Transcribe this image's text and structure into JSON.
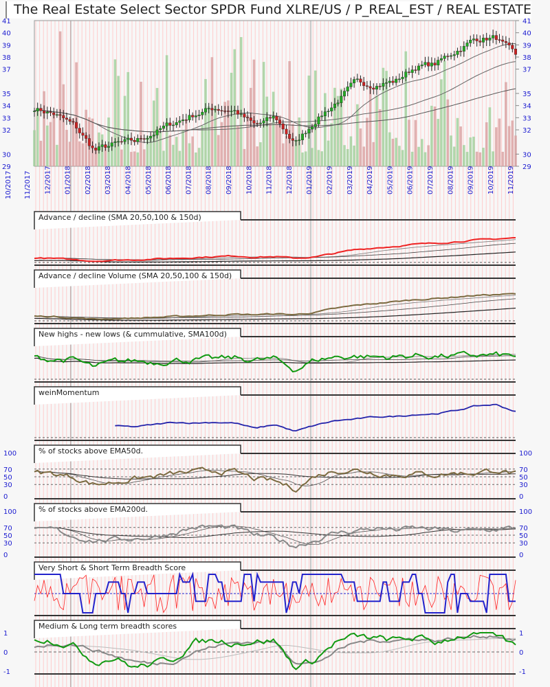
{
  "title": "The Real Estate Select Sector SPDR Fund XLRE/US / P_REAL_EST / REAL ESTATE",
  "chart_data": [
    {
      "type": "line",
      "name": "price",
      "title": "The Real Estate Select Sector SPDR Fund XLRE/US / P_REAL_EST / REAL ESTATE",
      "x": [
        "11/2017",
        "12/2017",
        "01/2018",
        "02/2018",
        "03/2018",
        "04/2018",
        "05/2018",
        "06/2018",
        "07/2018",
        "08/2018",
        "09/2018",
        "10/2018",
        "11/2018",
        "12/2018",
        "01/2019",
        "02/2019",
        "03/2019",
        "04/2019",
        "05/2019",
        "06/2019",
        "07/2019",
        "08/2019",
        "09/2019",
        "10/2019",
        "11/2019"
      ],
      "x_labels": [
        "10/2017",
        "11/2017",
        "12/2017",
        "01/2018",
        "02/2018",
        "03/2018",
        "04/2018",
        "05/2018",
        "06/2018",
        "07/2018",
        "08/2018",
        "09/2018",
        "10/2018",
        "11/2018",
        "12/2018",
        "01/2019",
        "02/2019",
        "03/2019",
        "04/2019",
        "05/2019",
        "06/2019",
        "07/2019",
        "08/2019",
        "09/2019",
        "10/2019",
        "11/2019"
      ],
      "values": [
        33.8,
        33.3,
        32.3,
        30.3,
        30.8,
        31.0,
        31.8,
        32.6,
        33.3,
        33.8,
        33.6,
        32.3,
        33.0,
        30.8,
        32.8,
        34.2,
        35.8,
        35.8,
        36.0,
        37.2,
        37.4,
        38.5,
        39.5,
        39.6,
        38.0
      ],
      "ylim": [
        29,
        41
      ],
      "yticks": [
        29,
        30,
        32,
        33,
        34,
        35,
        37,
        38,
        39,
        40,
        41
      ],
      "ytick_labels": [
        "29",
        "30",
        "32",
        "33",
        "34",
        "35",
        "37",
        "38",
        "39",
        "40",
        "41"
      ],
      "has_volume": true
    },
    {
      "type": "line",
      "name": "advance-decline",
      "title": "Advance / decline (SMA 20,50,100 & 150d)",
      "ylim": [
        0,
        100
      ],
      "values": [
        12,
        10,
        7,
        4,
        6,
        7,
        9,
        11,
        13,
        15,
        17,
        14,
        15,
        11,
        14,
        24,
        33,
        38,
        42,
        47,
        50,
        54,
        58,
        61,
        64
      ],
      "color": "#ee2222"
    },
    {
      "type": "line",
      "name": "advance-decline-volume",
      "title": "Advance / decline Volume (SMA 20,50,100 & 150d)",
      "ylim": [
        0,
        100
      ],
      "values": [
        12,
        11,
        8,
        4,
        6,
        7,
        9,
        11,
        13,
        15,
        17,
        16,
        18,
        16,
        22,
        32,
        40,
        45,
        50,
        55,
        58,
        62,
        66,
        68,
        70
      ],
      "color": "#7a6a40"
    },
    {
      "type": "line",
      "name": "new-highs-new-lows",
      "title": "New highs - new lows (& cummulative, SMA100d)",
      "ylim": [
        0,
        100
      ],
      "values": [
        55,
        52,
        50,
        30,
        45,
        48,
        45,
        50,
        50,
        52,
        55,
        50,
        52,
        25,
        50,
        58,
        60,
        58,
        58,
        62,
        60,
        60,
        62,
        62,
        60
      ],
      "color": "#119911"
    },
    {
      "type": "line",
      "name": "wein-momentum",
      "title": "weinMomentum",
      "ylim": [
        0,
        100
      ],
      "values": [
        null,
        null,
        null,
        null,
        30,
        28,
        34,
        40,
        38,
        40,
        38,
        24,
        34,
        16,
        32,
        44,
        48,
        54,
        55,
        60,
        62,
        70,
        82,
        86,
        68
      ],
      "color": "#2222aa"
    },
    {
      "type": "line",
      "name": "pct-above-ema50",
      "title": "% of stocks above EMA50d.",
      "ylim": [
        0,
        100
      ],
      "yticks": [
        0,
        30,
        50,
        70,
        100
      ],
      "ytick_labels": [
        "0",
        "30",
        "50",
        "70",
        "100"
      ],
      "values": [
        62,
        58,
        48,
        30,
        36,
        45,
        50,
        58,
        62,
        66,
        62,
        44,
        38,
        18,
        52,
        66,
        68,
        60,
        55,
        58,
        55,
        60,
        60,
        68,
        58
      ],
      "color": "#7a6a40"
    },
    {
      "type": "line",
      "name": "pct-above-ema200",
      "title": "% of stocks above EMA200d.",
      "ylim": [
        0,
        100
      ],
      "yticks": [
        0,
        30,
        50,
        70,
        100
      ],
      "ytick_labels": [
        "0",
        "30",
        "50",
        "70",
        "100"
      ],
      "values": [
        62,
        65,
        46,
        36,
        38,
        42,
        45,
        58,
        70,
        72,
        68,
        50,
        42,
        22,
        38,
        55,
        62,
        68,
        64,
        68,
        65,
        60,
        62,
        65,
        68
      ],
      "color": "#888888"
    },
    {
      "type": "line",
      "name": "short-breadth",
      "title": "Very Short & Short Term Breadth Score",
      "ylim": [
        0,
        1
      ],
      "series": [
        {
          "name": "very short",
          "color": "#ff2222"
        },
        {
          "name": "short",
          "color": "#2222cc"
        }
      ]
    },
    {
      "type": "line",
      "name": "medium-long-breadth",
      "title": "Medium & Long term breadth scores",
      "ylim": [
        -1,
        1
      ],
      "yticks": [
        -1,
        0,
        1
      ],
      "ytick_labels": [
        "-1",
        "0",
        "1"
      ],
      "series": [
        {
          "name": "medium",
          "color": "#119911",
          "values": [
            0.75,
            0.6,
            0.3,
            -0.5,
            -0.3,
            -0.8,
            -0.6,
            -0.3,
            0.5,
            0.6,
            0.5,
            0.55,
            0.6,
            -0.8,
            -0.4,
            0.5,
            0.8,
            0.7,
            0.6,
            0.75,
            0.5,
            0.8,
            0.9,
            0.85,
            0.3
          ]
        },
        {
          "name": "long",
          "color": "#888888",
          "values": [
            0.3,
            0.4,
            0.4,
            0.1,
            -0.2,
            -0.5,
            -0.6,
            -0.5,
            0,
            0.3,
            0.5,
            0.5,
            0.5,
            -0.5,
            -0.6,
            0,
            0.5,
            0.6,
            0.6,
            0.7,
            0.6,
            0.7,
            0.8,
            0.85,
            0.6
          ]
        }
      ]
    }
  ]
}
